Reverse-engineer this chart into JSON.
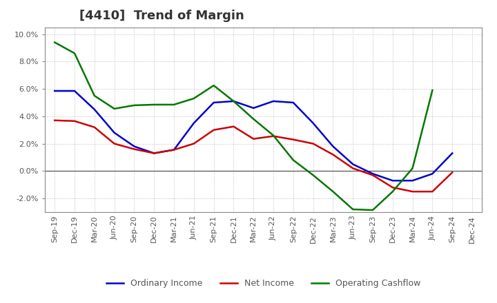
{
  "title": "[4410]  Trend of Margin",
  "x_labels": [
    "Sep-19",
    "Dec-19",
    "Mar-20",
    "Jun-20",
    "Sep-20",
    "Dec-20",
    "Mar-21",
    "Jun-21",
    "Sep-21",
    "Dec-21",
    "Mar-22",
    "Jun-22",
    "Sep-22",
    "Dec-22",
    "Mar-23",
    "Jun-23",
    "Sep-23",
    "Dec-23",
    "Mar-24",
    "Jun-24",
    "Sep-24",
    "Dec-24"
  ],
  "ordinary_income": [
    5.85,
    5.85,
    4.5,
    2.8,
    1.8,
    1.3,
    1.55,
    3.5,
    5.0,
    5.1,
    4.6,
    5.1,
    5.0,
    3.5,
    1.8,
    0.5,
    -0.2,
    -0.7,
    -0.7,
    -0.2,
    1.3,
    null
  ],
  "net_income": [
    3.7,
    3.65,
    3.2,
    2.0,
    1.6,
    1.3,
    1.55,
    2.0,
    3.0,
    3.25,
    2.35,
    2.55,
    2.3,
    2.0,
    1.2,
    0.2,
    -0.3,
    -1.2,
    -1.5,
    -1.5,
    -0.1,
    null
  ],
  "operating_cashflow": [
    9.4,
    8.6,
    5.5,
    4.55,
    4.8,
    4.85,
    4.85,
    5.3,
    6.25,
    5.1,
    3.8,
    2.6,
    0.8,
    -0.3,
    -1.5,
    -2.8,
    -2.85,
    -1.5,
    0.2,
    5.9,
    null,
    null
  ],
  "ordinary_income_color": "#0000cc",
  "net_income_color": "#cc0000",
  "operating_cashflow_color": "#007700",
  "background_color": "#ffffff",
  "grid_color": "#bbbbbb",
  "ylim": [
    -3.0,
    10.5
  ],
  "yticks": [
    -2.0,
    0.0,
    2.0,
    4.0,
    6.0,
    8.0,
    10.0
  ],
  "title_fontsize": 13,
  "legend_fontsize": 9,
  "tick_fontsize": 8,
  "title_color": "#333333",
  "tick_color": "#555555",
  "legend_text_color": "#555555"
}
